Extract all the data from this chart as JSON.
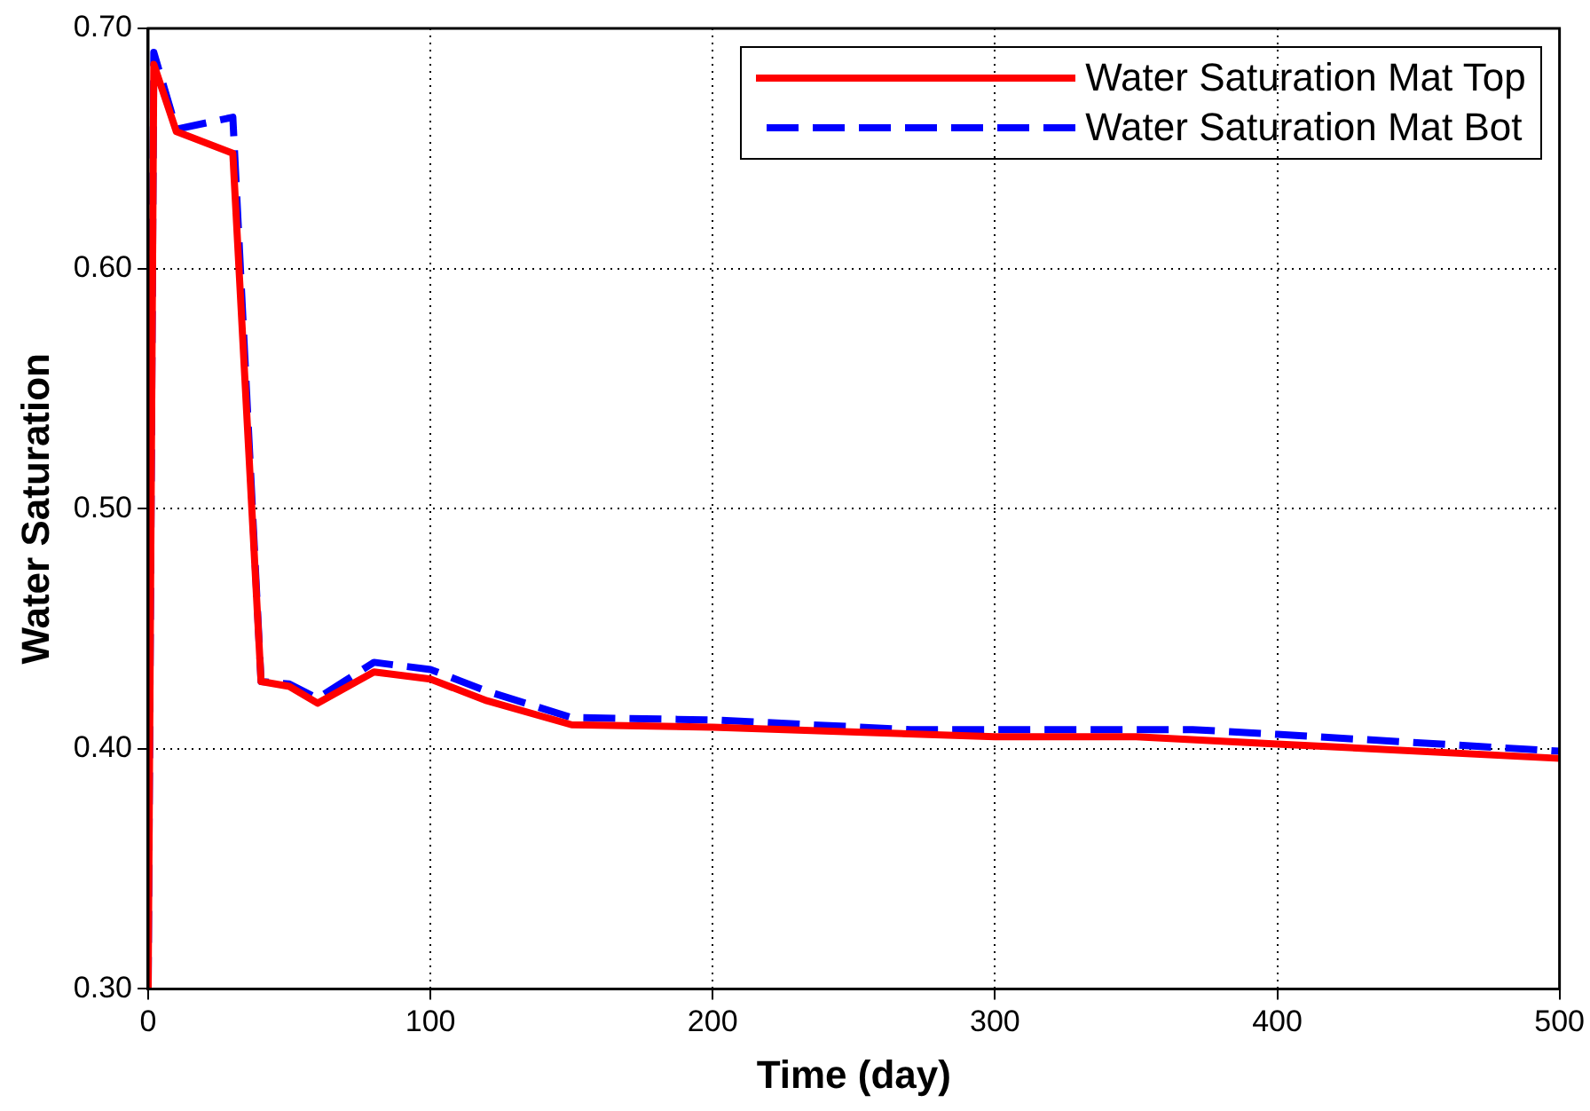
{
  "chart_data": {
    "type": "line",
    "xlabel": "Time (day)",
    "ylabel": "Water Saturation",
    "xlim": [
      0,
      500
    ],
    "xticks": [
      0,
      100,
      200,
      300,
      400,
      {
        "value": 500,
        "label": "500"
      }
    ],
    "ylim": [
      0.3,
      0.7
    ],
    "yticks": [
      {
        "value": 0.3,
        "label": "0.30"
      },
      {
        "value": 0.4,
        "label": "0.40"
      },
      {
        "value": 0.5,
        "label": "0.50"
      },
      {
        "value": 0.6,
        "label": "0.60"
      },
      {
        "value": 0.7,
        "label": "0.70"
      }
    ],
    "grid": true,
    "legend": "top right",
    "marker": "none",
    "series": [
      {
        "name": "Water Saturation Mat Top",
        "color": "#ff0000",
        "line_style": "solid",
        "x": [
          0,
          2,
          10,
          30,
          40,
          50,
          60,
          80,
          100,
          120,
          150,
          200,
          300,
          350,
          400,
          500
        ],
        "values": [
          0.3,
          0.685,
          0.657,
          0.648,
          0.428,
          0.426,
          0.419,
          0.432,
          0.429,
          0.42,
          0.41,
          0.409,
          0.405,
          0.405,
          0.402,
          0.396
        ]
      },
      {
        "name": "Water Saturation Mat Bot",
        "color": "#0000ff",
        "line_style": "dashed",
        "x": [
          0,
          2,
          10,
          30,
          40,
          50,
          60,
          80,
          100,
          120,
          150,
          200,
          270,
          370,
          400,
          500
        ],
        "values": [
          0.3,
          0.69,
          0.658,
          0.663,
          0.428,
          0.427,
          0.421,
          0.436,
          0.433,
          0.424,
          0.413,
          0.412,
          0.408,
          0.408,
          0.406,
          0.399
        ]
      }
    ]
  }
}
